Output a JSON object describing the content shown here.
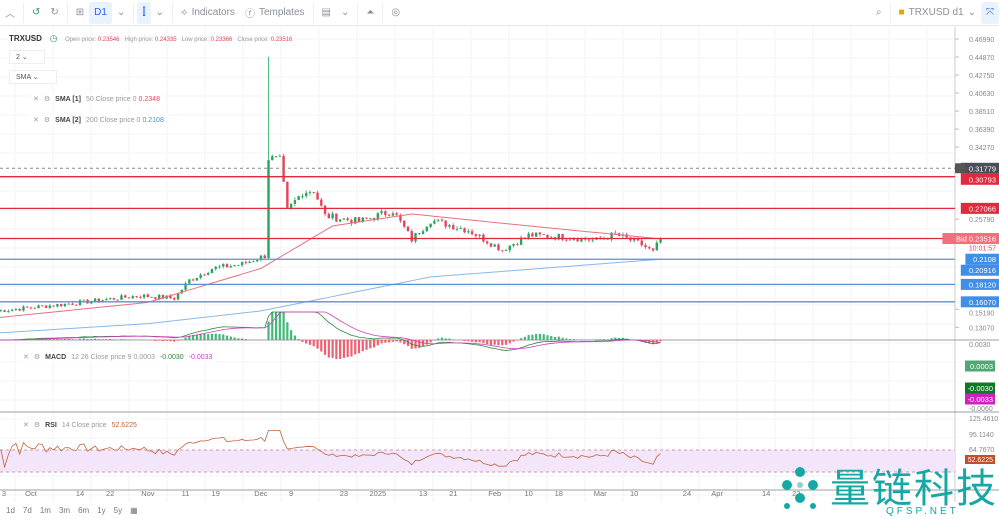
{
  "toolbar": {
    "interval": "D1",
    "indicators": "Indicators",
    "templates": "Templates",
    "layout_name": "TRXUSD d1"
  },
  "legend": {
    "symbol": "TRXUSD",
    "open_label": "Open price:",
    "open": "0.23546",
    "high_label": "High price:",
    "high": "0.24335",
    "low_label": "Low price:",
    "low": "0.23366",
    "close_label": "Close price:",
    "close": "0.23516"
  },
  "selectors": {
    "count": "2",
    "type": "SMA"
  },
  "indicators": [
    {
      "name": "SMA [1]",
      "params": "50 Close price 0",
      "value": "0.2348",
      "color": "#e0475a"
    },
    {
      "name": "SMA [2]",
      "params": "200 Close price 0",
      "value": "0.2108",
      "color": "#4a8fd9"
    },
    {
      "name": "MACD",
      "params": "12 26 Close price 9",
      "v1": "0.0003",
      "v2": "-0.0030",
      "v3": "-0.0033"
    },
    {
      "name": "RSI",
      "params": "14 Close price",
      "value": "52.6225"
    }
  ],
  "price_axis": [
    "0.46990",
    "0.44870",
    "0.42750",
    "0.40630",
    "0.38510",
    "0.36390",
    "0.34270",
    "0.25790",
    "0.15190",
    "0.13070"
  ],
  "price_labels": [
    {
      "text": "0.31779",
      "price": 0.31779,
      "bg": "#4a4f57",
      "dashed": true
    },
    {
      "text": "0.30793",
      "price": 0.30793,
      "bg": "#e0293d",
      "line": "#e0293d"
    },
    {
      "text": "0.27066",
      "price": 0.27066,
      "bg": "#e0293d",
      "line": "#e0293d"
    },
    {
      "text": "Bid 0.23516",
      "price": 0.23516,
      "bg": "#f0707c",
      "line": "#e0293d"
    },
    {
      "text": "0.2108",
      "price": 0.2108,
      "bg": "#3f8ee8",
      "line": "#5b8fd6"
    },
    {
      "text": "0.20916",
      "price": 0.20916,
      "bg": "#3f8ee8"
    },
    {
      "text": "0.18120",
      "price": 0.1812,
      "bg": "#3f8ee8",
      "line": "#5b8fd6"
    },
    {
      "text": "0.16070",
      "price": 0.1607,
      "bg": "#3f8ee8",
      "line": "#5b8fd6"
    }
  ],
  "countdown": "10:01:57",
  "macd_axis": {
    "top": "0.0030",
    "labels": [
      {
        "text": "0.0003",
        "bg": "#4fa872"
      },
      {
        "text": "-0.0030",
        "bg": "#0e7a27"
      },
      {
        "text": "-0.0033",
        "bg": "#d020c0"
      }
    ],
    "bottom": "-0.0060"
  },
  "rsi_axis": {
    "labels": [
      "125.4610",
      "95.1140",
      "64.7670"
    ],
    "value": "52.6225"
  },
  "x_axis": [
    {
      "t": "3",
      "d": "2024-09-23"
    },
    {
      "t": "Oct",
      "d": "2024-10-01"
    },
    {
      "t": "14",
      "d": "2024-10-14"
    },
    {
      "t": "22",
      "d": "2024-10-22"
    },
    {
      "t": "Nov",
      "d": "2024-11-01"
    },
    {
      "t": "11",
      "d": "2024-11-11"
    },
    {
      "t": "19",
      "d": "2024-11-19"
    },
    {
      "t": "Dec",
      "d": "2024-12-01"
    },
    {
      "t": "9",
      "d": "2024-12-09"
    },
    {
      "t": "23",
      "d": "2024-12-23"
    },
    {
      "t": "2025",
      "d": "2025-01-01"
    },
    {
      "t": "13",
      "d": "2025-01-13"
    },
    {
      "t": "21",
      "d": "2025-01-21"
    },
    {
      "t": "Feb",
      "d": "2025-02-01"
    },
    {
      "t": "10",
      "d": "2025-02-10"
    },
    {
      "t": "18",
      "d": "2025-02-18"
    },
    {
      "t": "Mar",
      "d": "2025-03-01"
    },
    {
      "t": "10",
      "d": "2025-03-10"
    },
    {
      "t": "24",
      "d": "2025-03-24"
    },
    {
      "t": "Apr",
      "d": "2025-04-01"
    },
    {
      "t": "14",
      "d": "2025-04-14"
    },
    {
      "t": "22",
      "d": "2025-04-22"
    }
  ],
  "ranges": [
    "1d",
    "7d",
    "1m",
    "3m",
    "6m",
    "1y",
    "5y"
  ],
  "chart_data": {
    "type": "candlestick",
    "symbol": "TRXUSD",
    "interval": "D1",
    "close_keypoints": [
      [
        "2024-09-22",
        0.15
      ],
      [
        "2024-10-10",
        0.158
      ],
      [
        "2024-10-30",
        0.168
      ],
      [
        "2024-11-08",
        0.165
      ],
      [
        "2024-11-12",
        0.186
      ],
      [
        "2024-11-18",
        0.2
      ],
      [
        "2024-11-26",
        0.205
      ],
      [
        "2024-12-02",
        0.215
      ],
      [
        "2024-12-03",
        0.33
      ],
      [
        "2024-12-06",
        0.327
      ],
      [
        "2024-12-08",
        0.268
      ],
      [
        "2024-12-12",
        0.29
      ],
      [
        "2024-12-15",
        0.292
      ],
      [
        "2024-12-18",
        0.262
      ],
      [
        "2024-12-27",
        0.255
      ],
      [
        "2025-01-05",
        0.268
      ],
      [
        "2025-01-10",
        0.234
      ],
      [
        "2025-01-15",
        0.257
      ],
      [
        "2025-01-25",
        0.245
      ],
      [
        "2025-02-03",
        0.222
      ],
      [
        "2025-02-10",
        0.239
      ],
      [
        "2025-02-20",
        0.237
      ],
      [
        "2025-02-28",
        0.233
      ],
      [
        "2025-03-05",
        0.24
      ],
      [
        "2025-03-12",
        0.228
      ],
      [
        "2025-03-15",
        0.219
      ],
      [
        "2025-03-17",
        0.23516
      ]
    ],
    "spike_high": {
      "date": "2024-12-03",
      "high": 0.449
    },
    "sma50_keypoints": [
      [
        "2024-09-22",
        0.142
      ],
      [
        "2024-11-01",
        0.16
      ],
      [
        "2024-12-01",
        0.2
      ],
      [
        "2024-12-20",
        0.25
      ],
      [
        "2025-01-10",
        0.264
      ],
      [
        "2025-02-10",
        0.25
      ],
      [
        "2025-03-17",
        0.2348
      ]
    ],
    "sma200_keypoints": [
      [
        "2024-09-22",
        0.124
      ],
      [
        "2024-11-01",
        0.135
      ],
      [
        "2024-12-01",
        0.15
      ],
      [
        "2025-01-15",
        0.19
      ],
      [
        "2025-03-17",
        0.2108
      ]
    ],
    "ylim": [
      0.12,
      0.48
    ]
  }
}
